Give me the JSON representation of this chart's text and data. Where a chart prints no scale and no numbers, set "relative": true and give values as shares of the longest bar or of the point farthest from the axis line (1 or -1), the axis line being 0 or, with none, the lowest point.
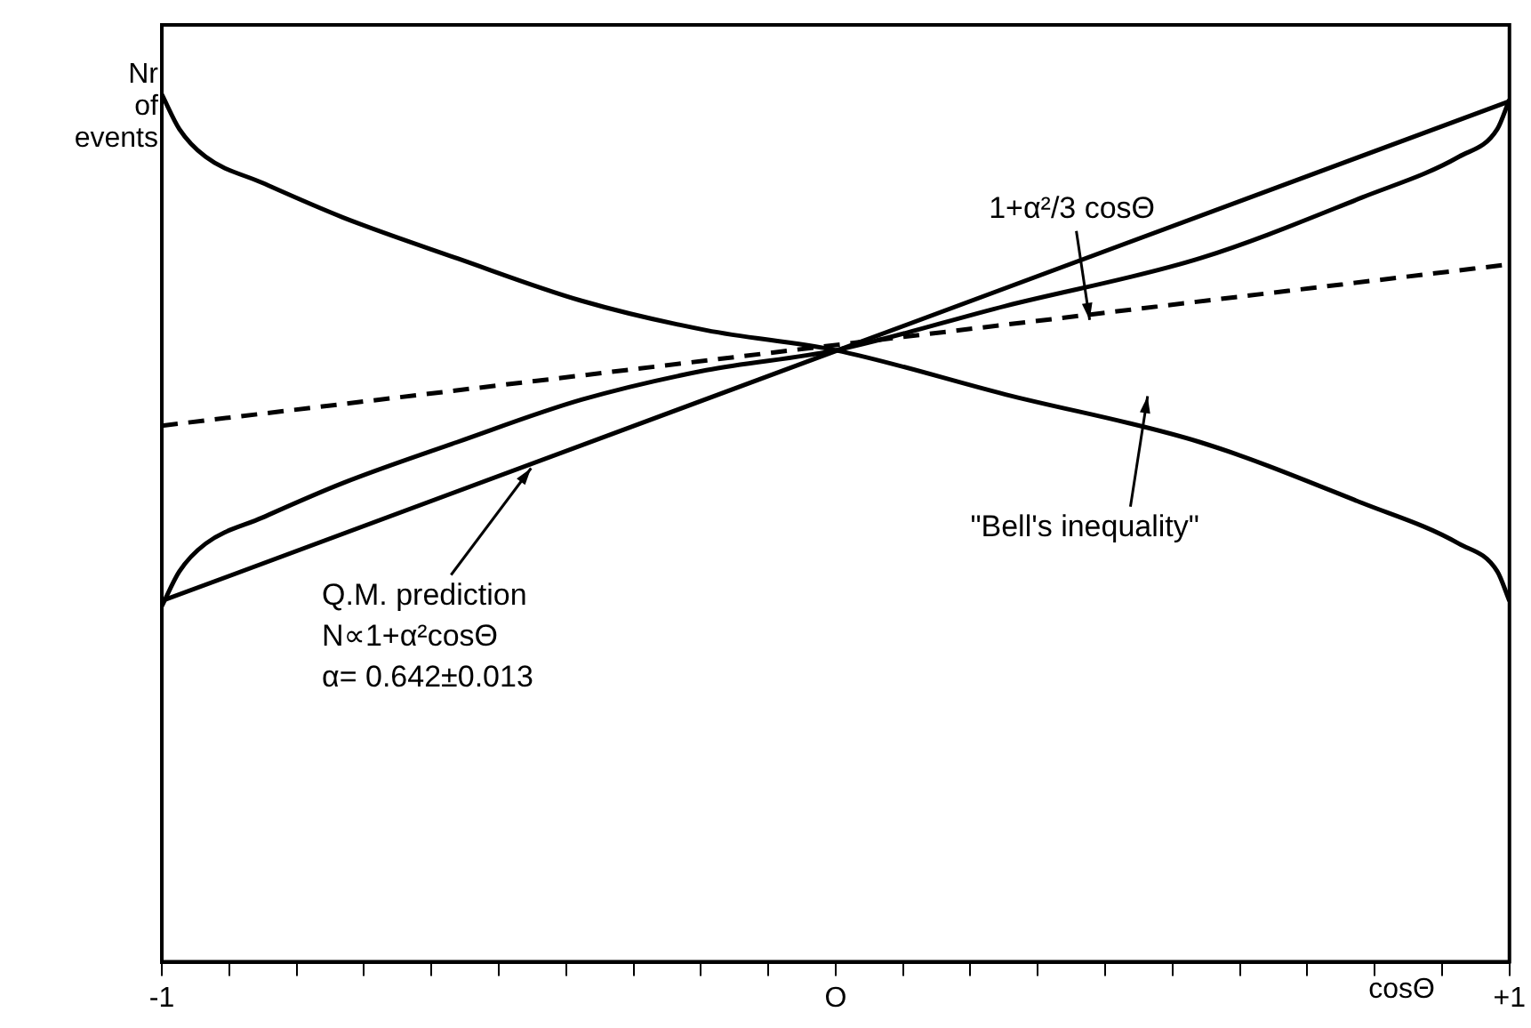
{
  "chart_data": {
    "type": "line",
    "xlabel": "cosΘ",
    "ylabel": "Nr of events",
    "relative": true,
    "xlim": [
      -1,
      1
    ],
    "xticks": [
      {
        "value": -1,
        "label": "-1"
      },
      {
        "value": -0.9,
        "label": null
      },
      {
        "value": -0.8,
        "label": null
      },
      {
        "value": -0.7,
        "label": null
      },
      {
        "value": -0.6,
        "label": null
      },
      {
        "value": -0.5,
        "label": null
      },
      {
        "value": -0.4,
        "label": null
      },
      {
        "value": -0.3,
        "label": null
      },
      {
        "value": -0.2,
        "label": null
      },
      {
        "value": -0.1,
        "label": null
      },
      {
        "value": 0,
        "label": "O"
      },
      {
        "value": 0.1,
        "label": null
      },
      {
        "value": 0.2,
        "label": null
      },
      {
        "value": 0.3,
        "label": null
      },
      {
        "value": 0.4,
        "label": null
      },
      {
        "value": 0.5,
        "label": null
      },
      {
        "value": 0.6,
        "label": null
      },
      {
        "value": 0.7,
        "label": null
      },
      {
        "value": 0.8,
        "label": null
      },
      {
        "value": 0.9,
        "label": null
      },
      {
        "value": 1,
        "label": "+1"
      }
    ],
    "grid": false,
    "legend": false,
    "marker": "none",
    "series": [
      {
        "color": "#000000",
        "x": [
          -1,
          1
        ],
        "values": [
          0.416,
          0.992
        ]
      },
      {
        "color": "#000000",
        "line_style": "dashed",
        "x": [
          -1,
          1
        ],
        "values": [
          0.618,
          0.804
        ]
      },
      {
        "color": "#000000",
        "x": [
          -1,
          -0.974,
          -0.935,
          -0.851,
          -0.731,
          -0.562,
          -0.377,
          -0.192,
          0,
          0.252,
          0.541,
          0.781,
          0.925,
          0.982,
          1
        ],
        "values": [
          1.0,
          0.96,
          0.928,
          0.898,
          0.858,
          0.811,
          0.762,
          0.728,
          0.705,
          0.654,
          0.599,
          0.529,
          0.482,
          0.45,
          0.416
        ]
      },
      {
        "color": "#000000",
        "x": [
          -1,
          -0.974,
          -0.935,
          -0.851,
          -0.731,
          -0.562,
          -0.377,
          -0.192,
          0,
          0.252,
          0.541,
          0.781,
          0.925,
          0.982,
          1
        ],
        "values": [
          0.41,
          0.45,
          0.482,
          0.512,
          0.552,
          0.599,
          0.648,
          0.682,
          0.705,
          0.756,
          0.811,
          0.881,
          0.928,
          0.96,
          0.994
        ]
      }
    ],
    "annotations": [
      {
        "text": "1+α²/3 cosΘ",
        "x": 0.377,
        "y": 0.74
      },
      {
        "text": "Q.M. prediction",
        "x": -0.452,
        "y": 0.569
      },
      "N∝1+α²cosΘ",
      "α= 0.642±0.013",
      "\"Bell's inequality\""
    ]
  }
}
